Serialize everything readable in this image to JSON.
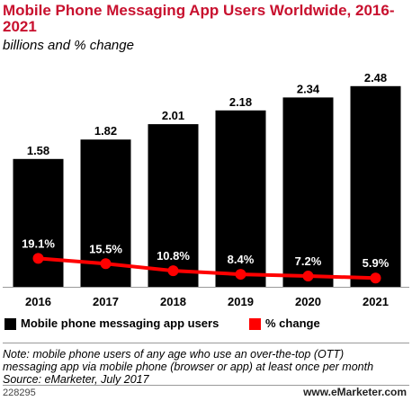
{
  "header": {
    "title": "Mobile Phone Messaging App Users Worldwide, 2016-2021",
    "subtitle": "billions and % change"
  },
  "chart_data": {
    "type": "bar",
    "categories": [
      "2016",
      "2017",
      "2018",
      "2019",
      "2020",
      "2021"
    ],
    "series": [
      {
        "name": "Mobile phone messaging app users",
        "type": "bar",
        "values": [
          1.58,
          1.82,
          2.01,
          2.18,
          2.34,
          2.48
        ],
        "labels": [
          "1.58",
          "1.82",
          "2.01",
          "2.18",
          "2.34",
          "2.48"
        ],
        "color": "#000000"
      },
      {
        "name": "% change",
        "type": "line",
        "values": [
          19.1,
          15.5,
          10.8,
          8.4,
          7.2,
          5.9
        ],
        "labels": [
          "19.1%",
          "15.5%",
          "10.8%",
          "8.4%",
          "7.2%",
          "5.9%"
        ],
        "color": "#ff0000"
      }
    ],
    "ylim": [
      0,
      2.6
    ],
    "line_ylim": [
      0,
      40
    ],
    "grid": false,
    "legend_position": "bottom"
  },
  "legend": {
    "items": [
      {
        "label": "Mobile phone messaging app users",
        "color": "#000000"
      },
      {
        "label": "% change",
        "color": "#ff0000"
      }
    ]
  },
  "footer": {
    "note_line1": "Note: mobile phone users of any age who use an over-the-top (OTT)",
    "note_line2": "messaging app via mobile phone (browser or app) at least once per month",
    "source": "Source: eMarketer, July 2017",
    "chart_id": "228295",
    "brand": "www.eMarketer.com"
  }
}
